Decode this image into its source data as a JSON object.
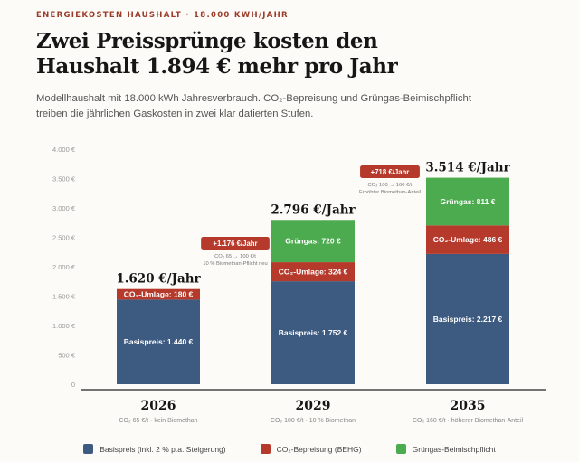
{
  "header": {
    "eyebrow": "ENERGIEKOSTEN HAUSHALT · 18.000 KWH/JAHR",
    "title_line1": "Zwei Preissprünge kosten den",
    "title_line2": "Haushalt 1.894 € mehr pro Jahr",
    "subtitle_line1": "Modellhaushalt mit 18.000 kWh Jahresverbrauch. CO₂-Bepreisung und Grüngas-Beimischpflicht",
    "subtitle_line2": "treiben die jährlichen Gaskosten in zwei klar datierten Stufen."
  },
  "colors": {
    "base": "#3d5a80",
    "co2": "#b63a2b",
    "green": "#4cab4e",
    "accent": "#9c3b2a"
  },
  "chart_data": {
    "type": "bar",
    "stacked": true,
    "categories": [
      "2026",
      "2029",
      "2035"
    ],
    "category_notes": [
      "CO₂ 65 €/t · kein Biomethan",
      "CO₂ 100 €/t · 10 % Biomethan",
      "CO₂ 160 €/t · höherer Biomethan-Anteil"
    ],
    "totals": [
      1620,
      2796,
      3514
    ],
    "total_labels": [
      "1.620 €/Jahr",
      "2.796 €/Jahr",
      "3.514 €/Jahr"
    ],
    "series": [
      {
        "name": "Basispreis (inkl. 2 % p.a. Steigerung)",
        "color_key": "base",
        "values": [
          1440,
          1752,
          2217
        ],
        "labels": [
          "Basispreis: 1.440 €",
          "Basispreis: 1.752 €",
          "Basispreis: 2.217 €"
        ]
      },
      {
        "name": "CO₂-Bepreisung (BEHG)",
        "color_key": "co2",
        "values": [
          180,
          324,
          486
        ],
        "labels": [
          "CO₂-Umlage: 180 €",
          "CO₂-Umlage: 324 €",
          "CO₂-Umlage: 486 €"
        ]
      },
      {
        "name": "Grüngas-Beimischpflicht",
        "color_key": "green",
        "values": [
          0,
          720,
          811
        ],
        "labels": [
          "",
          "Grüngas: 720 €",
          "Grüngas: 811 €"
        ]
      }
    ],
    "y_ticks": [
      0,
      500,
      1000,
      1500,
      2000,
      2500,
      3000,
      3500,
      4000
    ],
    "y_tick_labels": [
      "0",
      "500 €",
      "1.000 €",
      "1.500 €",
      "2.000 €",
      "2.500 €",
      "3.000 €",
      "3.500 €",
      "4.000 €"
    ],
    "ylim": [
      0,
      4000
    ],
    "grid": false,
    "annotations": [
      {
        "between": [
          0,
          1
        ],
        "badge": "+1.176 €/Jahr",
        "note1": "CO₂ 65 → 100 €/t",
        "note2": "10 % Biomethan-Pflicht neu"
      },
      {
        "between": [
          1,
          2
        ],
        "badge": "+718 €/Jahr",
        "note1": "CO₂ 100 → 160 €/t",
        "note2": "Erhöhter Biomethan-Anteil"
      }
    ],
    "legend_position": "bottom"
  }
}
